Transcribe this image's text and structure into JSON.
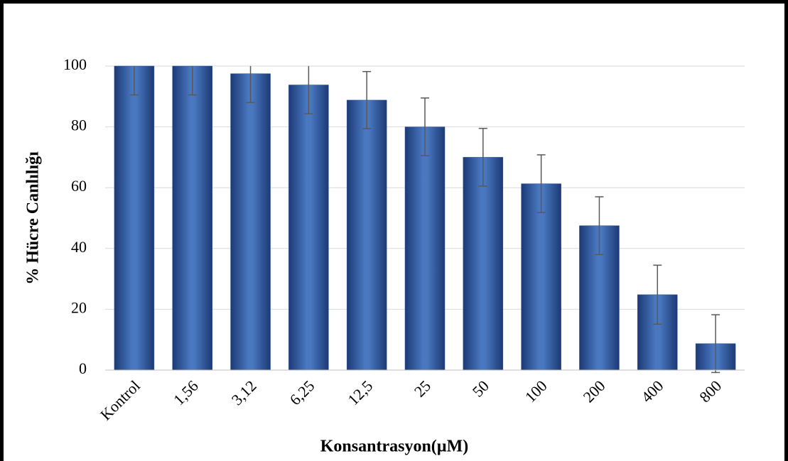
{
  "chart_data": {
    "type": "bar",
    "x_label": "Konsantrasyon(µM)",
    "y_label": "% Hücre Canlılığı",
    "categories": [
      "Kontrol",
      "1,56",
      "3,12",
      "6,25",
      "12,5",
      "25",
      "50",
      "100",
      "200",
      "400",
      "800"
    ],
    "values": [
      100,
      100,
      97.5,
      93.8,
      88.8,
      80,
      70,
      61.3,
      47.5,
      24.8,
      8.7
    ],
    "errors": [
      9.5,
      9.5,
      9.5,
      9.5,
      9.4,
      9.5,
      9.5,
      9.5,
      9.5,
      9.7,
      9.5
    ],
    "color": "#2f5597",
    "ylim": [
      0,
      100
    ],
    "yticks": [
      0,
      20,
      40,
      60,
      80,
      100
    ],
    "grid": true
  }
}
